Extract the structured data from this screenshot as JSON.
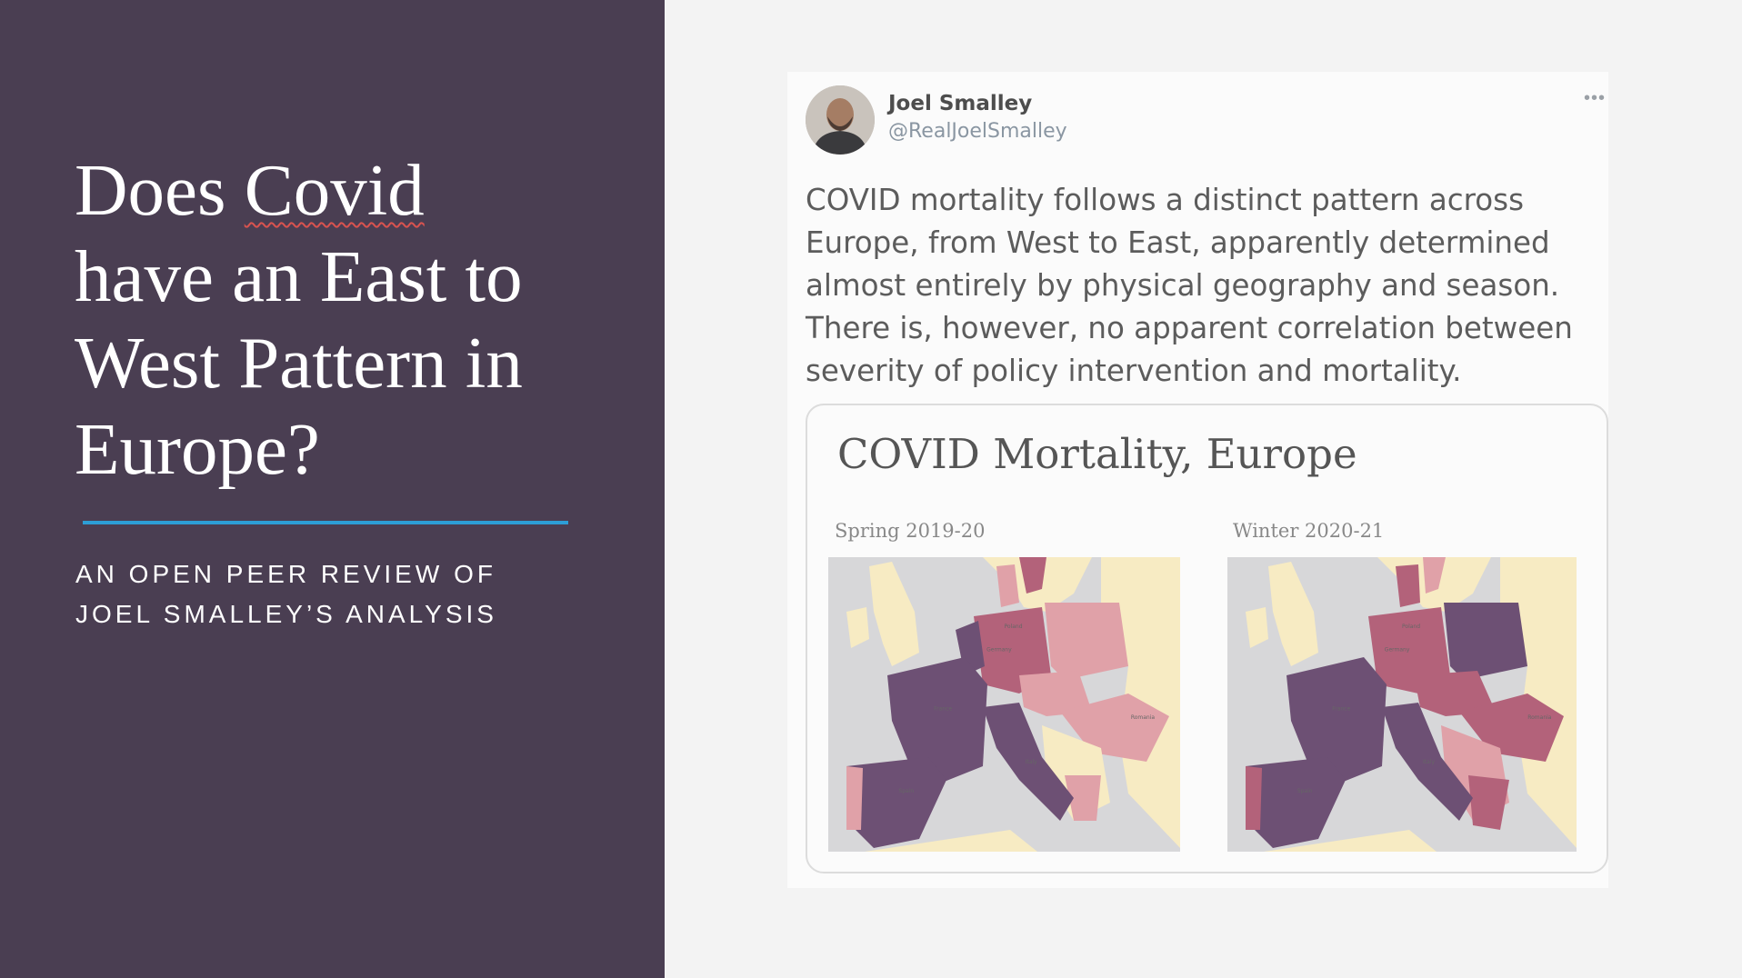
{
  "slide": {
    "title_lines": [
      "Does Covid",
      "have an East to",
      "West Pattern in",
      "Europe?"
    ],
    "subtitle_lines": [
      "AN OPEN PEER REVIEW OF",
      "JOEL SMALLEY’S ANALYSIS"
    ]
  },
  "tweet": {
    "author_name": "Joel Smalley",
    "author_handle": "@RealJoelSmalley",
    "more_icon": "more-dots-icon",
    "text_lines": [
      "COVID mortality follows a distinct pattern across",
      "Europe, from West to East, apparently determined",
      "almost entirely by physical geography and season.",
      "There is, however, no apparent correlation between",
      "severity of policy intervention and mortality."
    ],
    "card": {
      "title": "COVID Mortality, Europe",
      "maps": [
        {
          "label": "Spring 2019-20",
          "labels": [
            "Poland",
            "Germany",
            "France",
            "Italy",
            "Spain",
            "Romania"
          ]
        },
        {
          "label": "Winter 2020-21",
          "labels": [
            "Poland",
            "Germany",
            "France",
            "Italy",
            "Spain",
            "Romania"
          ]
        }
      ]
    }
  },
  "colors": {
    "left_bg": "#4a3e52",
    "divider": "#2d9ed6",
    "map_land": "#d7d7d9",
    "map_low": "#f7ebc3",
    "map_mid": "#e0a1a8",
    "map_high": "#b3627a",
    "map_very_high": "#6d5074"
  }
}
